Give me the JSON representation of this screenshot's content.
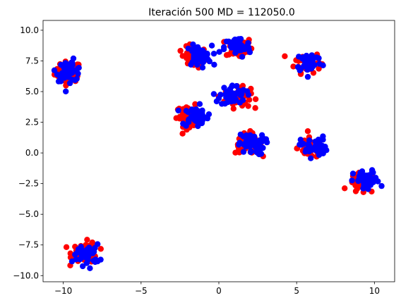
{
  "chart_data": {
    "type": "scatter",
    "title": "Iteración 500 MD = 112050.0",
    "xlabel": "",
    "ylabel": "",
    "xlim": [
      -11.3,
      11.3
    ],
    "ylim": [
      -10.5,
      10.8
    ],
    "x_ticks": [
      -10,
      -5,
      0,
      5,
      10
    ],
    "y_ticks": [
      -10.0,
      -7.5,
      -5.0,
      -2.5,
      0.0,
      2.5,
      5.0,
      7.5,
      10.0
    ],
    "x_tick_labels": [
      "−10",
      "−5",
      "0",
      "5",
      "10"
    ],
    "y_tick_labels": [
      "−10.0",
      "−7.5",
      "−5.0",
      "−2.5",
      "0.0",
      "2.5",
      "5.0",
      "7.5",
      "10.0"
    ],
    "grid": false,
    "legend": "none",
    "series": [
      {
        "color": "#ff0000",
        "clusters": [
          {
            "cx": -9.7,
            "cy": 6.6,
            "n": 48
          },
          {
            "cx": -1.6,
            "cy": 7.8,
            "n": 52
          },
          {
            "cx": 1.3,
            "cy": 8.6,
            "n": 52
          },
          {
            "cx": 5.7,
            "cy": 7.4,
            "n": 42
          },
          {
            "cx": 1.2,
            "cy": 4.5,
            "n": 52
          },
          {
            "cx": -1.9,
            "cy": 3.0,
            "n": 50
          },
          {
            "cx": 1.9,
            "cy": 0.8,
            "n": 52
          },
          {
            "cx": 5.9,
            "cy": 0.4,
            "n": 44
          },
          {
            "cx": 9.2,
            "cy": -2.5,
            "n": 44
          },
          {
            "cx": -8.6,
            "cy": -8.1,
            "n": 50
          }
        ]
      },
      {
        "color": "#0000ff",
        "clusters": [
          {
            "cx": -9.6,
            "cy": 6.7,
            "n": 44
          },
          {
            "cx": -1.3,
            "cy": 7.9,
            "n": 48
          },
          {
            "cx": 1.2,
            "cy": 8.6,
            "n": 48
          },
          {
            "cx": 5.8,
            "cy": 7.4,
            "n": 40
          },
          {
            "cx": 0.9,
            "cy": 4.7,
            "n": 48
          },
          {
            "cx": -1.5,
            "cy": 3.0,
            "n": 46
          },
          {
            "cx": 2.1,
            "cy": 0.7,
            "n": 48
          },
          {
            "cx": 6.1,
            "cy": 0.5,
            "n": 42
          },
          {
            "cx": 9.5,
            "cy": -2.3,
            "n": 40
          },
          {
            "cx": -8.5,
            "cy": -8.3,
            "n": 46
          }
        ]
      }
    ]
  }
}
